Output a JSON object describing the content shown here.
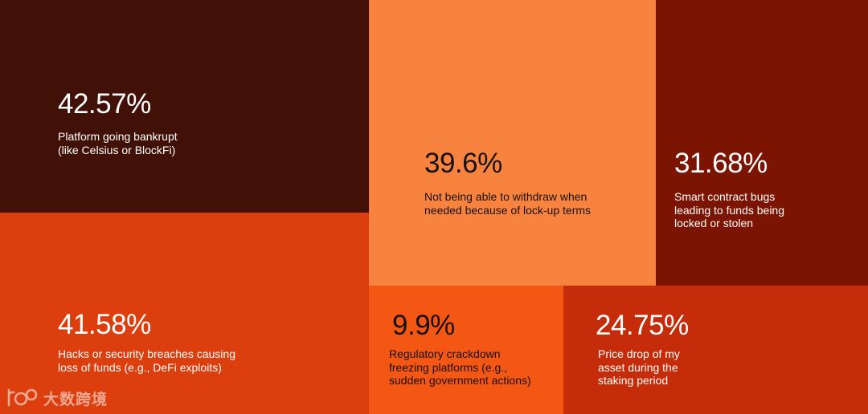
{
  "chart_data": {
    "type": "treemap",
    "items": [
      {
        "value": "42.57%",
        "label": "Platform going bankrupt\n(like Celsius or BlockFi)",
        "color": "#411108"
      },
      {
        "value": "41.58%",
        "label": "Hacks or security breaches causing\nloss of funds (e.g., DeFi exploits)",
        "color": "#dc3e0e"
      },
      {
        "value": "39.6%",
        "label": "Not being able to withdraw when\nneeded because of lock-up terms",
        "color": "#f8833f"
      },
      {
        "value": "31.68%",
        "label": "Smart contract bugs\nleading to funds being\nlocked or stolen",
        "color": "#7c1402"
      },
      {
        "value": "9.9%",
        "label": "Regulatory crackdown\nfreezing platforms (e.g.,\nsudden government actions)",
        "color": "#f45714"
      },
      {
        "value": "24.75%",
        "label": "Price drop of my\nasset during the\nstaking period",
        "color": "#c52d0a"
      }
    ]
  },
  "watermark": {
    "text": "大数跨境",
    "logo_icon": "ebo-logo-icon"
  }
}
